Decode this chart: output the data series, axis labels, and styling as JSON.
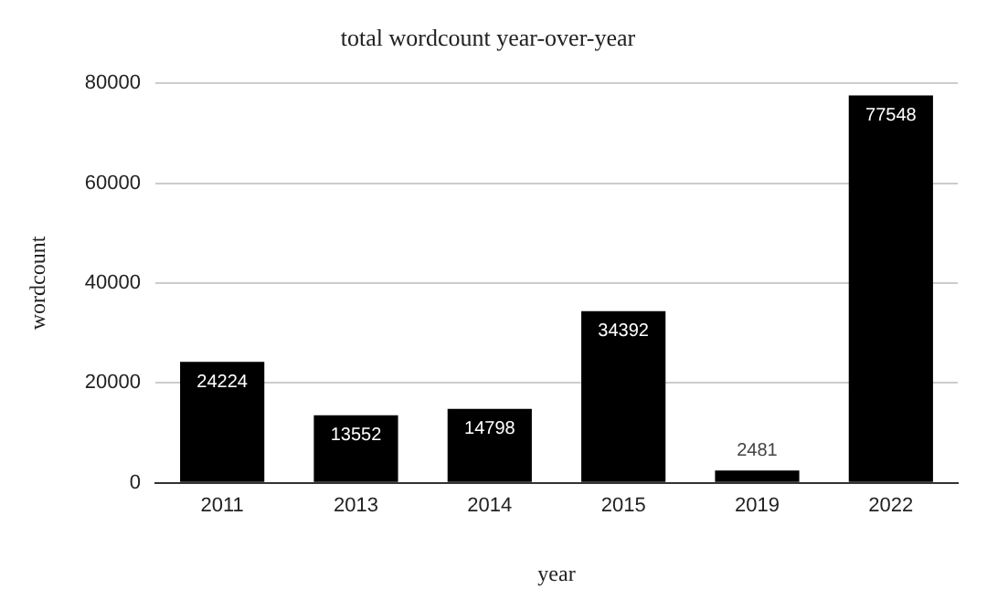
{
  "chart_data": {
    "type": "bar",
    "title": "total wordcount year-over-year",
    "xlabel": "year",
    "ylabel": "wordcount",
    "categories": [
      "2011",
      "2013",
      "2014",
      "2015",
      "2019",
      "2022"
    ],
    "values": [
      24224,
      13552,
      14798,
      34392,
      2481,
      77548
    ],
    "color": "#000000",
    "ylim": [
      0,
      80000
    ],
    "yticks": [
      0,
      20000,
      40000,
      60000,
      80000
    ],
    "grid": "y",
    "legend": false,
    "data_labels": true
  }
}
